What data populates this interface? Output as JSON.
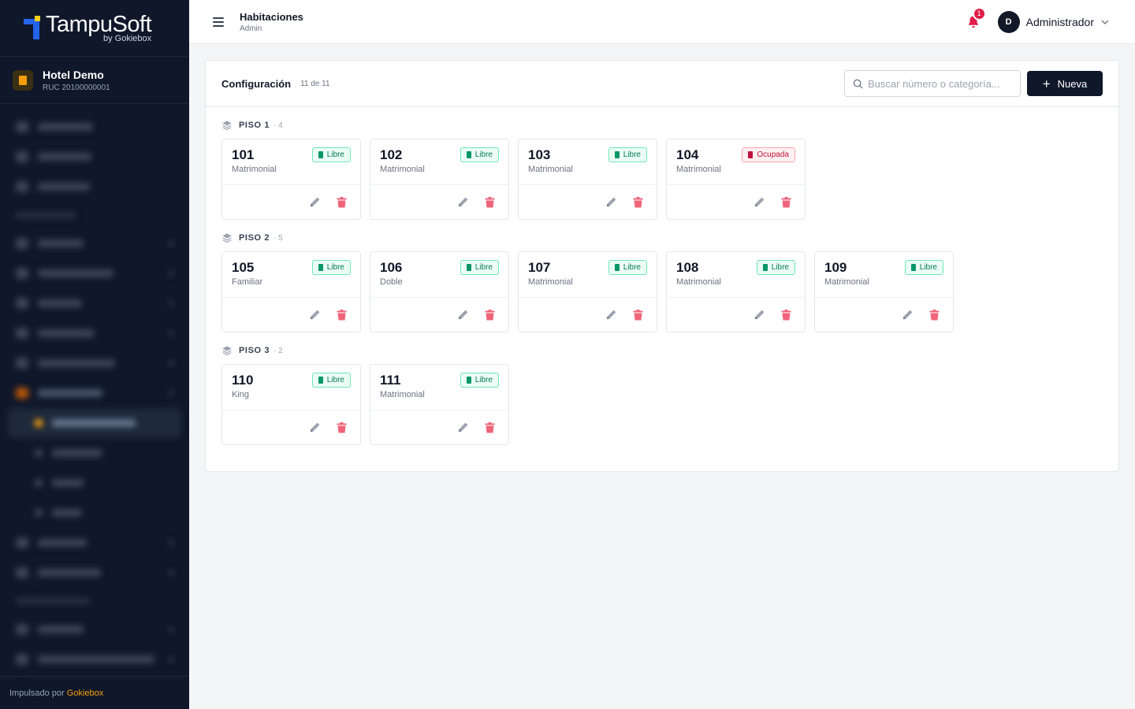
{
  "brand": {
    "name": "TampuSoft",
    "sub": "by Gokiebox"
  },
  "hotel": {
    "name": "Hotel Demo",
    "ruc": "RUC 20100000001"
  },
  "footer": {
    "prefix": "Impulsado por",
    "brand": "Gokiebox"
  },
  "header": {
    "title": "Habitaciones",
    "subtitle": "Admin",
    "notifications": "1",
    "avatar_initial": "D",
    "user": "Administrador"
  },
  "panel": {
    "title": "Configuración",
    "count": "11 de 11",
    "search_placeholder": "Buscar número o categoría...",
    "new_button": "Nueva"
  },
  "floors": [
    {
      "name": "PISO 1",
      "count": "· 4",
      "rooms": [
        {
          "number": "101",
          "category": "Matrimonial",
          "status": "Libre"
        },
        {
          "number": "102",
          "category": "Matrimonial",
          "status": "Libre"
        },
        {
          "number": "103",
          "category": "Matrimonial",
          "status": "Libre"
        },
        {
          "number": "104",
          "category": "Matrimonial",
          "status": "Ocupada"
        }
      ]
    },
    {
      "name": "PISO 2",
      "count": "· 5",
      "rooms": [
        {
          "number": "105",
          "category": "Familiar",
          "status": "Libre"
        },
        {
          "number": "106",
          "category": "Doble",
          "status": "Libre"
        },
        {
          "number": "107",
          "category": "Matrimonial",
          "status": "Libre"
        },
        {
          "number": "108",
          "category": "Matrimonial",
          "status": "Libre"
        },
        {
          "number": "109",
          "category": "Matrimonial",
          "status": "Libre"
        }
      ]
    },
    {
      "name": "PISO 3",
      "count": "· 2",
      "rooms": [
        {
          "number": "110",
          "category": "King",
          "status": "Libre"
        },
        {
          "number": "111",
          "category": "Matrimonial",
          "status": "Libre"
        }
      ]
    }
  ],
  "colors": {
    "sidebar_bg": "#0f172a",
    "accent": "#f59e0b",
    "primary_button": "#0f172a",
    "libre": "#047857",
    "ocupada": "#be123c",
    "delete_icon": "#f0647a",
    "edit_icon": "#9ca3af"
  },
  "icons": {
    "menu": "hamburger-icon",
    "notifications": "bell-icon",
    "search": "search-icon",
    "new": "plus-icon",
    "floor": "layers-icon",
    "edit": "pencil-icon",
    "delete": "trash-icon"
  }
}
